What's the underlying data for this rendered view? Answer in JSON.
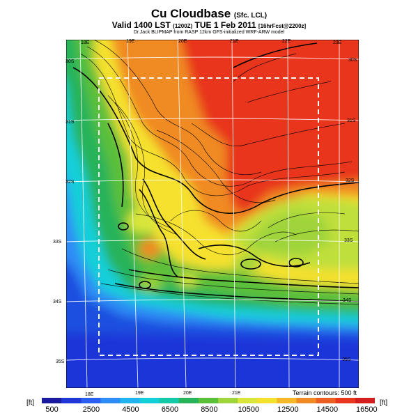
{
  "header": {
    "title": "Cu Cloudbase",
    "title_suffix": "(Sfc. LCL)",
    "valid_prefix": "Valid 1400 LST",
    "valid_paren": "(1200Z)",
    "valid_date": "TUE 1 Feb 2011",
    "valid_run": "[16hrFcst@2200z]",
    "credit": "Dr.Jack BLIPMAP from RASP 12km GFS-initialized WRF-ARW model"
  },
  "map": {
    "lon_top_labels": [
      "18E",
      "19E",
      "20E",
      "21E",
      "22E",
      "23E"
    ],
    "lon_bottom_labels": [
      "18E",
      "19E",
      "20E",
      "21E"
    ],
    "lat_right_labels": [
      "30S",
      "31S",
      "32S",
      "33S",
      "34S",
      "35S"
    ],
    "lat_left_labels": [
      "30S",
      "31S",
      "32S",
      "33S",
      "34S",
      "35S"
    ],
    "terrain_note": "Terrain contours: 500 ft"
  },
  "colorbar": {
    "unit_left": "[ft]",
    "unit_right": "[ft]",
    "tick_labels": [
      "500",
      "2500",
      "4500",
      "6500",
      "8500",
      "10500",
      "12500",
      "14500",
      "16500"
    ],
    "colors": [
      "#1a1aa0",
      "#1f36d8",
      "#2a5ef0",
      "#2d8cf5",
      "#1fb4f0",
      "#12cfd9",
      "#14c9a8",
      "#26b35a",
      "#5bbf3a",
      "#9fd43a",
      "#d9e63a",
      "#f5e12d",
      "#f5b829",
      "#f08a24",
      "#ec5e22",
      "#e8361f",
      "#d41e1e"
    ]
  }
}
